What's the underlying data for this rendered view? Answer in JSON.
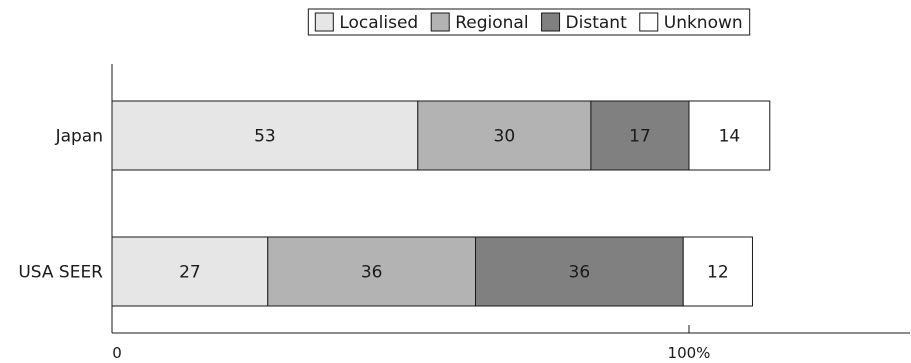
{
  "chart_data": {
    "type": "bar",
    "orientation": "horizontal",
    "stacked": true,
    "categories": [
      "Japan",
      "USA SEER"
    ],
    "series": [
      {
        "name": "Localised",
        "values": [
          53,
          27
        ],
        "color": "#e6e6e6"
      },
      {
        "name": "Regional",
        "values": [
          30,
          36
        ],
        "color": "#b3b3b3"
      },
      {
        "name": "Distant",
        "values": [
          17,
          36
        ],
        "color": "#808080"
      },
      {
        "name": "Unknown",
        "values": [
          14,
          12
        ],
        "color": "#ffffff"
      }
    ],
    "ticks": [
      {
        "value": 0,
        "label": "0"
      },
      {
        "value": 100,
        "label": "100%"
      }
    ],
    "xlim": [
      0,
      138
    ],
    "legend_position": "top",
    "grid": false,
    "title": "",
    "xlabel": "",
    "ylabel": ""
  }
}
